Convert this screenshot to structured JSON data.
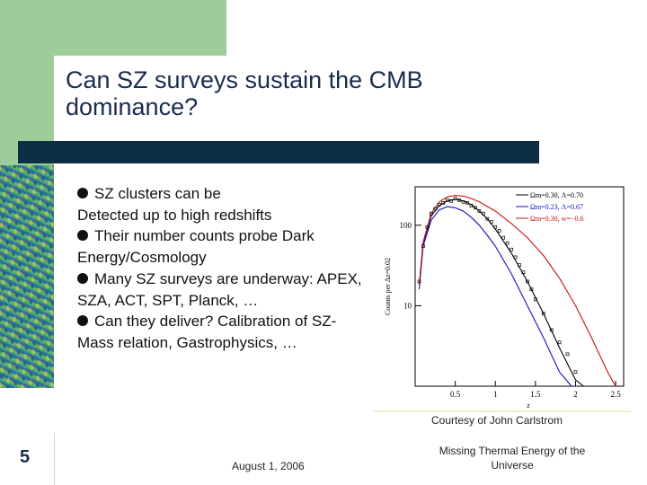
{
  "slide": {
    "title": "Can SZ surveys sustain the CMB dominance?",
    "bullets": [
      {
        "first": "SZ clusters can be",
        "rest": "Detected up to high redshifts"
      },
      {
        "text": "Their number counts probe Dark Energy/Cosmology"
      },
      {
        "text": "Many SZ surveys are underway: APEX, SZA, ACT, SPT, Planck, …"
      },
      {
        "text": "Can they deliver?  Calibration of SZ-Mass relation, Gastrophysics, …"
      }
    ],
    "courtesy": "Courtesy of John Carlstrom",
    "slide_number": "5",
    "date": "August 1, 2006",
    "footer_title": "Missing Thermal Energy of the Universe"
  },
  "colors": {
    "accent_green": "#9dcd9b",
    "dark_bar": "#0e2f43",
    "title": "#1a2b4f",
    "curve_black": "#000000",
    "curve_blue": "#1010c8",
    "curve_red": "#c81010"
  },
  "chart_data": {
    "type": "line",
    "xlabel": "z",
    "ylabel": "Counts per Δz=0.02",
    "xscale": "linear",
    "yscale": "log",
    "xlim": [
      0,
      2.6
    ],
    "ylim": [
      1,
      300
    ],
    "x_ticks": [
      "0.5",
      "1",
      "1.5",
      "2",
      "2.5"
    ],
    "y_ticks": [
      "100",
      "10"
    ],
    "legend": [
      "Ωm=0.30, Λ=0.70",
      "Ωm=0.23, Λ=0.67",
      "Ωm=0.30, w=−0.6"
    ],
    "legend_position": "top-right",
    "series": [
      {
        "name": "Ωm=0.30, Λ=0.70",
        "color": "#000000",
        "x": [
          0.05,
          0.1,
          0.2,
          0.3,
          0.4,
          0.5,
          0.6,
          0.7,
          0.8,
          0.9,
          1.0,
          1.2,
          1.4,
          1.6,
          1.8,
          2.0,
          2.1
        ],
        "y": [
          18,
          60,
          130,
          175,
          200,
          210,
          200,
          180,
          150,
          120,
          90,
          45,
          20,
          8,
          3,
          1.2,
          1
        ]
      },
      {
        "name": "Ωm=0.23, Λ=0.67",
        "color": "#1010c8",
        "x": [
          0.05,
          0.1,
          0.2,
          0.3,
          0.4,
          0.5,
          0.6,
          0.7,
          0.8,
          0.9,
          1.0,
          1.2,
          1.4,
          1.6,
          1.8,
          1.95
        ],
        "y": [
          16,
          55,
          115,
          155,
          170,
          165,
          150,
          125,
          100,
          75,
          55,
          25,
          10,
          4,
          1.5,
          1
        ]
      },
      {
        "name": "Ωm=0.30, w=−0.6",
        "color": "#c81010",
        "x": [
          0.05,
          0.1,
          0.2,
          0.3,
          0.4,
          0.5,
          0.6,
          0.7,
          0.8,
          1.0,
          1.2,
          1.4,
          1.6,
          1.8,
          2.0,
          2.2,
          2.4,
          2.5
        ],
        "y": [
          18,
          62,
          140,
          195,
          225,
          235,
          230,
          215,
          195,
          150,
          105,
          70,
          42,
          22,
          10,
          4,
          1.5,
          1
        ]
      }
    ],
    "points": {
      "x": [
        0.05,
        0.1,
        0.15,
        0.2,
        0.25,
        0.3,
        0.35,
        0.4,
        0.45,
        0.5,
        0.55,
        0.6,
        0.65,
        0.7,
        0.75,
        0.8,
        0.85,
        0.9,
        0.95,
        1.0,
        1.05,
        1.1,
        1.15,
        1.2,
        1.25,
        1.3,
        1.35,
        1.4,
        1.45,
        1.5,
        1.6,
        1.7,
        1.8,
        1.9,
        2.0
      ],
      "y": [
        20,
        55,
        95,
        140,
        160,
        180,
        190,
        205,
        200,
        215,
        205,
        195,
        190,
        175,
        165,
        150,
        140,
        120,
        110,
        95,
        85,
        70,
        60,
        50,
        40,
        32,
        26,
        20,
        16,
        12,
        8,
        5,
        3.5,
        2.5,
        1.5
      ]
    }
  }
}
